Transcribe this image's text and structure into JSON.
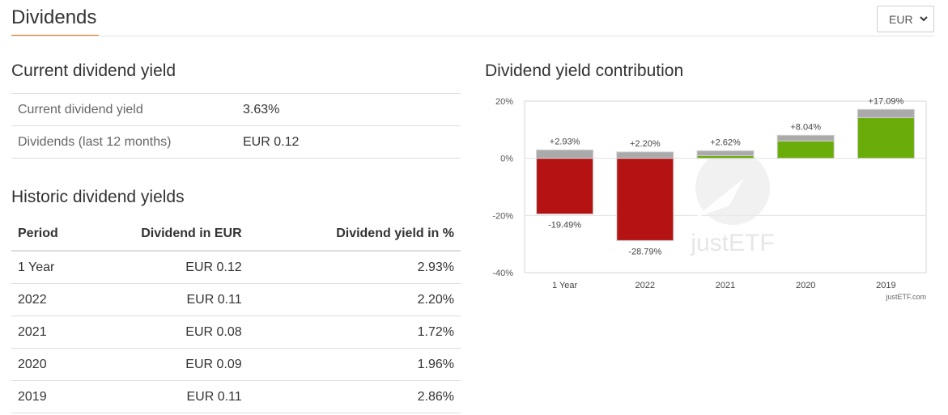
{
  "header": {
    "title": "Dividends"
  },
  "currency_select": {
    "value": "EUR"
  },
  "current_yield": {
    "title": "Current dividend yield",
    "rows": [
      {
        "label": "Current dividend yield",
        "value": "3.63%"
      },
      {
        "label": "Dividends (last 12 months)",
        "value": "EUR 0.12"
      }
    ]
  },
  "historic": {
    "title": "Historic dividend yields",
    "columns": [
      "Period",
      "Dividend in EUR",
      "Dividend yield in %"
    ],
    "rows": [
      {
        "period": "1 Year",
        "dividend": "EUR 0.12",
        "yield": "2.93%"
      },
      {
        "period": "2022",
        "dividend": "EUR 0.11",
        "yield": "2.20%"
      },
      {
        "period": "2021",
        "dividend": "EUR 0.08",
        "yield": "1.72%"
      },
      {
        "period": "2020",
        "dividend": "EUR 0.09",
        "yield": "1.96%"
      },
      {
        "period": "2019",
        "dividend": "EUR 0.11",
        "yield": "2.86%"
      }
    ]
  },
  "chart_data": {
    "type": "bar",
    "title": "Dividend yield contribution",
    "categories": [
      "1 Year",
      "2022",
      "2021",
      "2020",
      "2019"
    ],
    "series": [
      {
        "name": "",
        "values": [
          -19.49,
          -28.79,
          0.9,
          6.08,
          14.23
        ],
        "color_pos": "#6aad0a",
        "color_neg": "#b51213"
      },
      {
        "name": "",
        "values": [
          2.93,
          2.2,
          1.72,
          1.96,
          2.86
        ],
        "color": "#aaaaaa"
      }
    ],
    "total_labels": [
      "+2.93%",
      "+2.20%",
      "+2.62%",
      "+8.04%",
      "+17.09%"
    ],
    "price_labels": [
      "-19.49%",
      "-28.79%",
      "",
      "",
      ""
    ],
    "y_ticks": [
      "20%",
      "0%",
      "-20%",
      "-40%"
    ],
    "y_tick_values": [
      20,
      0,
      -20,
      -40
    ],
    "ylim": [
      -40,
      20
    ],
    "grid": true,
    "watermark": "justETF",
    "credit": "justETF.com"
  }
}
